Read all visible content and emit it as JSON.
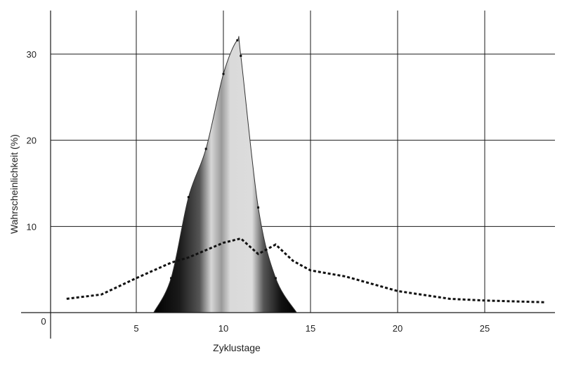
{
  "chart_data": {
    "type": "area",
    "xlabel": "Zyklustage",
    "ylabel": "Wahrscheinlichkeit (%)",
    "xlim": [
      0,
      28.8
    ],
    "ylim": [
      0,
      35
    ],
    "x_ticks": [
      5,
      10,
      15,
      20,
      25
    ],
    "y_ticks": [
      10,
      20,
      30
    ],
    "origin_label": "0",
    "grid": true,
    "series": [
      {
        "style": "area-gradient",
        "x": [
          6,
          7,
          8,
          9,
          10,
          10.8,
          11,
          12,
          13,
          14.2
        ],
        "y": [
          0,
          4,
          13.4,
          19,
          27.7,
          31.6,
          29.8,
          12.2,
          4,
          0
        ]
      },
      {
        "style": "dotted",
        "x": [
          1,
          3,
          5,
          7,
          8,
          10,
          11,
          12,
          13,
          14,
          15,
          17,
          20,
          23,
          25,
          28.5
        ],
        "y": [
          1.6,
          2.1,
          4,
          5.8,
          6.4,
          8.1,
          8.6,
          6.8,
          7.9,
          6,
          4.9,
          4.2,
          2.5,
          1.6,
          1.4,
          1.2
        ]
      }
    ],
    "colors": {
      "grid": "#1a1a1a",
      "fill_dark": "#000000",
      "fill_light": "#d8d8d8",
      "line": "#111111"
    }
  }
}
